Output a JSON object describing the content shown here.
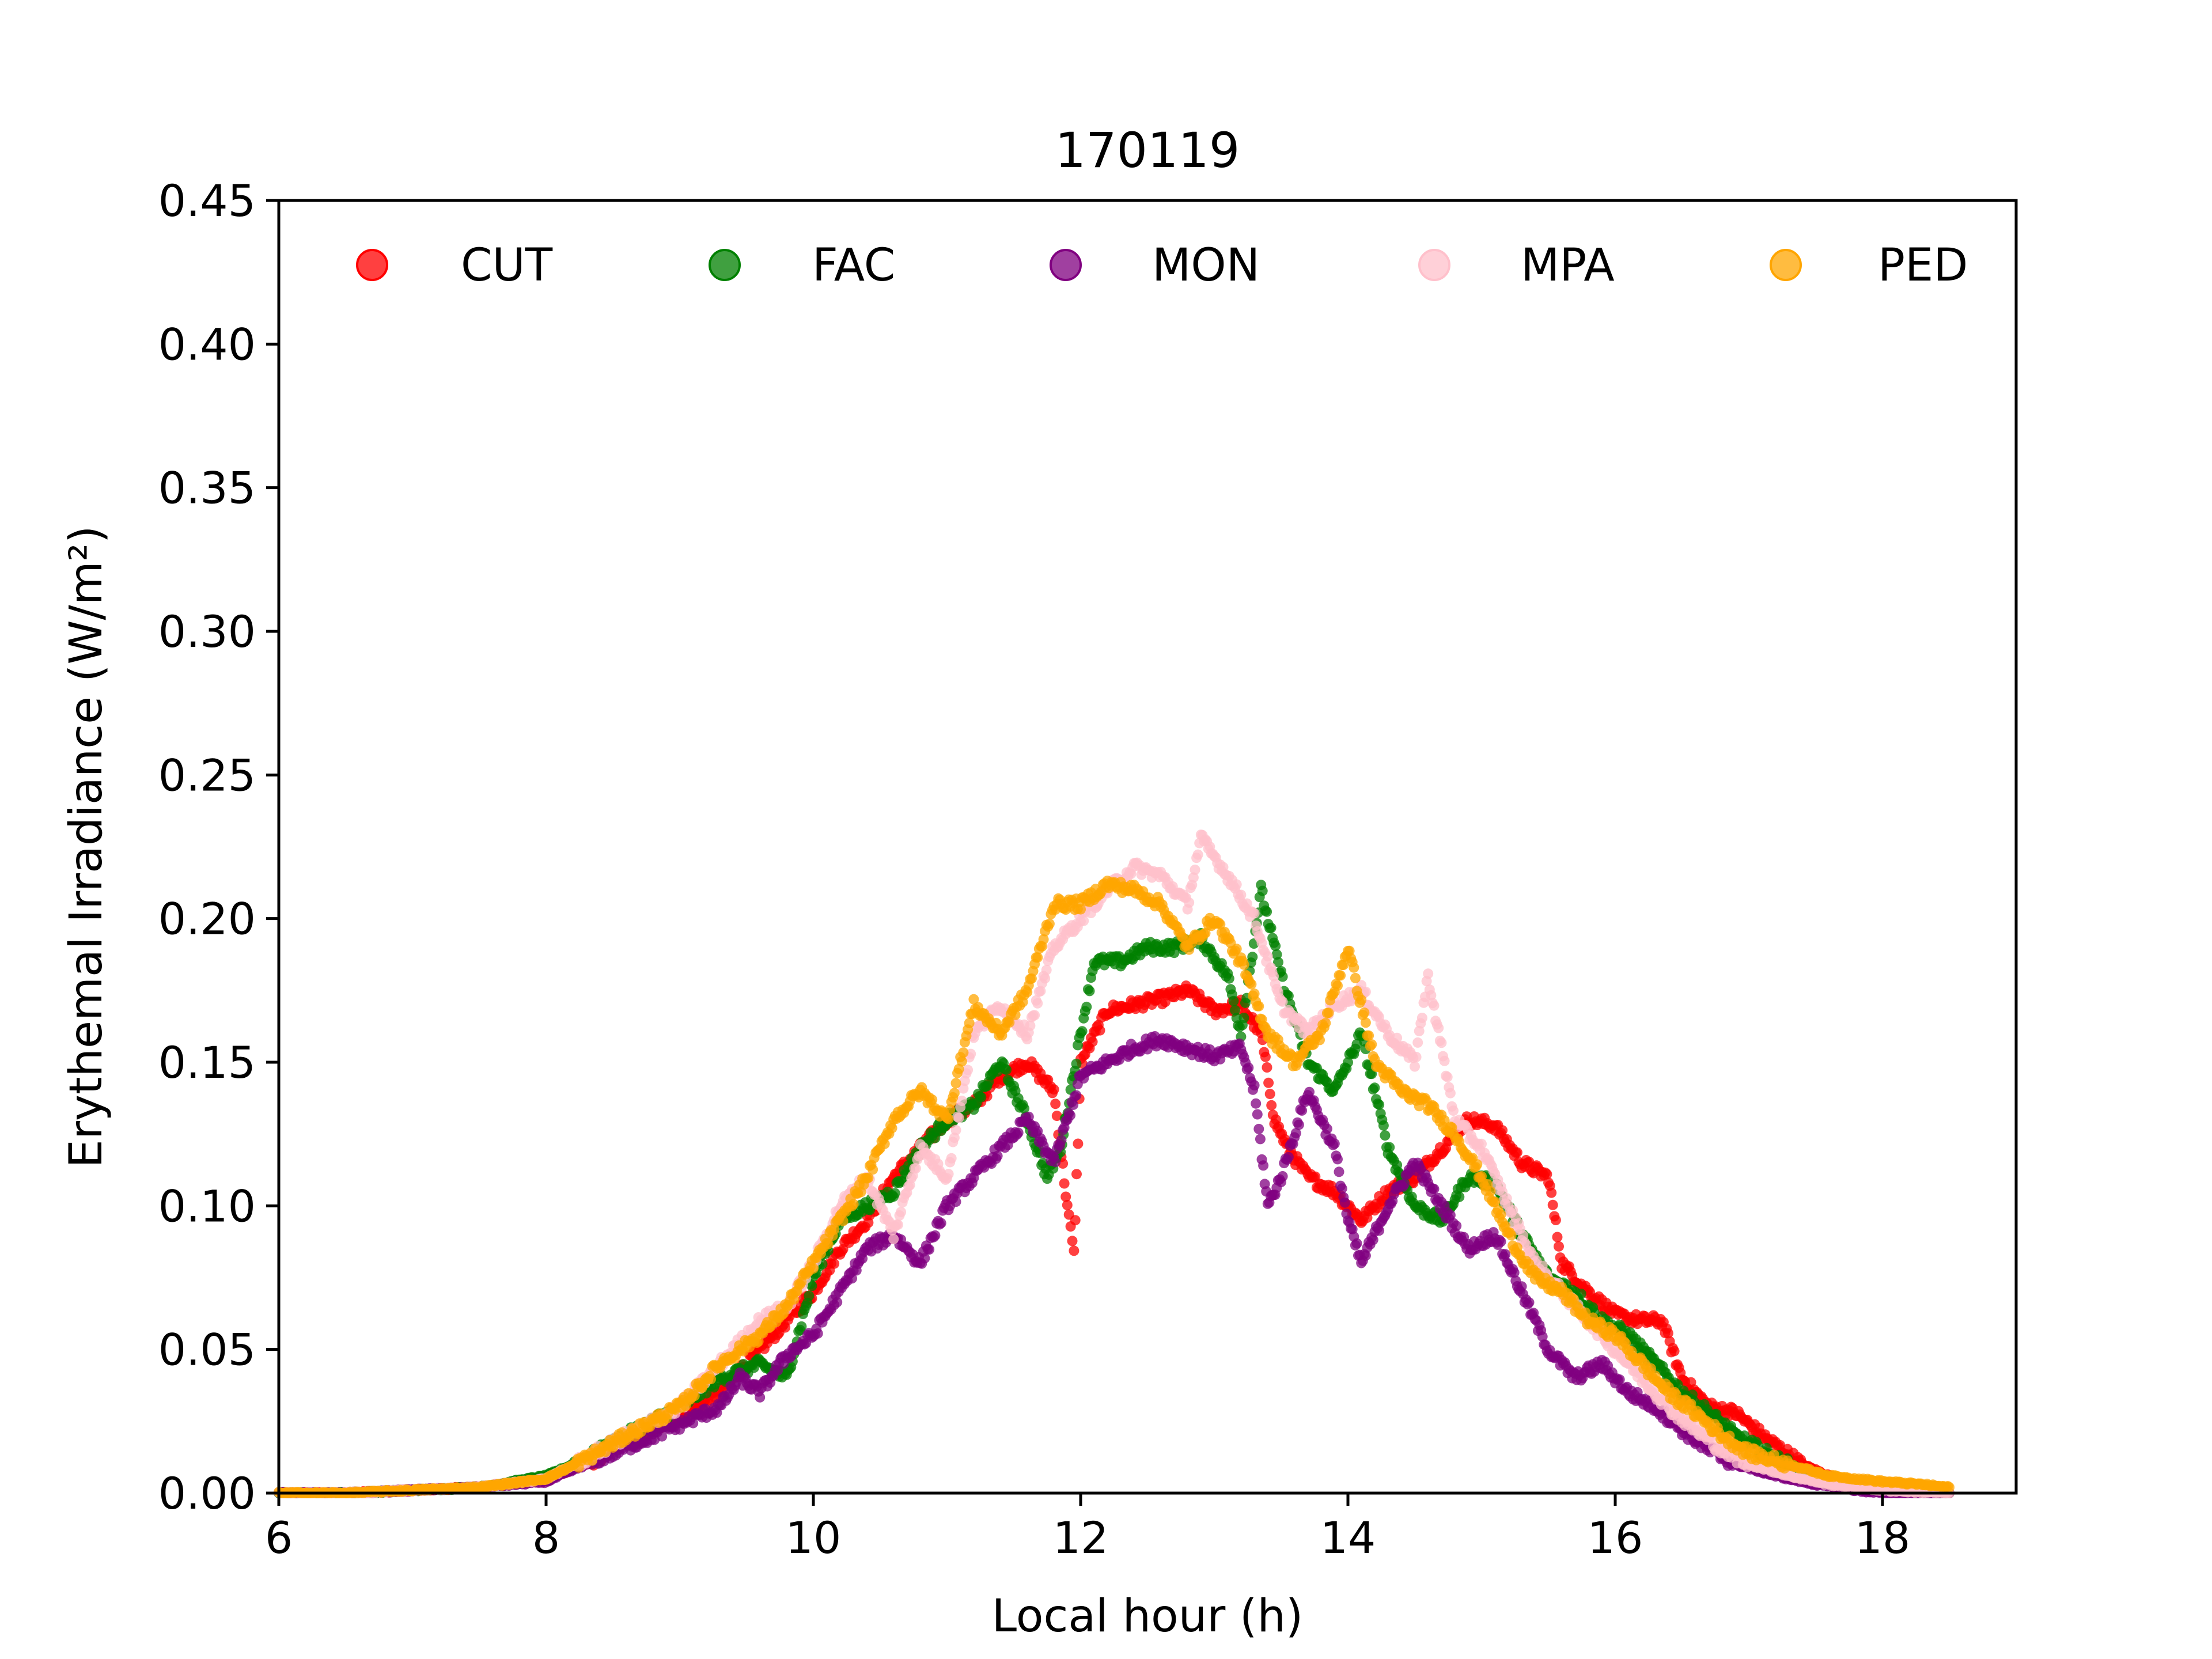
{
  "chart_data": {
    "type": "scatter",
    "title": "170119",
    "xlabel": "Local hour (h)",
    "ylabel": "Erythemal Irradiance (W/m²)",
    "xlim": [
      6,
      19
    ],
    "ylim": [
      0,
      0.45
    ],
    "xticks": [
      "6",
      "8",
      "10",
      "12",
      "14",
      "16",
      "18"
    ],
    "xtick_values": [
      6,
      8,
      10,
      12,
      14,
      16,
      18
    ],
    "yticks": [
      "0.00",
      "0.05",
      "0.10",
      "0.15",
      "0.20",
      "0.25",
      "0.30",
      "0.35",
      "0.40",
      "0.45"
    ],
    "ytick_values": [
      0,
      0.05,
      0.1,
      0.15,
      0.2,
      0.25,
      0.3,
      0.35,
      0.4,
      0.45
    ],
    "grid": false,
    "legend_position": "top",
    "series": [
      {
        "name": "CUT",
        "color": "#ff0000",
        "points": [
          [
            6,
            0
          ],
          [
            6.5,
            0
          ],
          [
            7,
            0.001
          ],
          [
            7.5,
            0.002
          ],
          [
            8,
            0.005
          ],
          [
            8.3,
            0.01
          ],
          [
            8.6,
            0.018
          ],
          [
            9,
            0.027
          ],
          [
            9.3,
            0.035
          ],
          [
            9.6,
            0.05
          ],
          [
            9.8,
            0.06
          ],
          [
            10,
            0.07
          ],
          [
            10.2,
            0.085
          ],
          [
            10.4,
            0.095
          ],
          [
            10.6,
            0.11
          ],
          [
            10.8,
            0.12
          ],
          [
            11,
            0.13
          ],
          [
            11.2,
            0.135
          ],
          [
            11.4,
            0.145
          ],
          [
            11.6,
            0.15
          ],
          [
            11.8,
            0.14
          ],
          [
            11.9,
            0.1
          ],
          [
            11.95,
            0.083
          ],
          [
            12,
            0.15
          ],
          [
            12.2,
            0.168
          ],
          [
            12.4,
            0.17
          ],
          [
            12.6,
            0.172
          ],
          [
            12.8,
            0.175
          ],
          [
            13,
            0.168
          ],
          [
            13.2,
            0.17
          ],
          [
            13.35,
            0.16
          ],
          [
            13.45,
            0.13
          ],
          [
            13.55,
            0.12
          ],
          [
            13.7,
            0.11
          ],
          [
            13.9,
            0.105
          ],
          [
            14,
            0.1
          ],
          [
            14.1,
            0.095
          ],
          [
            14.3,
            0.105
          ],
          [
            14.5,
            0.11
          ],
          [
            14.7,
            0.12
          ],
          [
            14.9,
            0.13
          ],
          [
            15.1,
            0.128
          ],
          [
            15.3,
            0.115
          ],
          [
            15.5,
            0.11
          ],
          [
            15.6,
            0.08
          ],
          [
            15.8,
            0.07
          ],
          [
            16,
            0.062
          ],
          [
            16.2,
            0.06
          ],
          [
            16.35,
            0.06
          ],
          [
            16.5,
            0.04
          ],
          [
            16.7,
            0.03
          ],
          [
            16.9,
            0.028
          ],
          [
            17.1,
            0.02
          ],
          [
            17.4,
            0.01
          ],
          [
            17.7,
            0.004
          ],
          [
            18,
            0.001
          ],
          [
            18.5,
            0
          ]
        ]
      },
      {
        "name": "FAC",
        "color": "#008000",
        "points": [
          [
            6,
            0
          ],
          [
            6.5,
            0
          ],
          [
            7,
            0.001
          ],
          [
            7.5,
            0.002
          ],
          [
            8,
            0.006
          ],
          [
            8.3,
            0.012
          ],
          [
            8.6,
            0.02
          ],
          [
            9,
            0.03
          ],
          [
            9.3,
            0.04
          ],
          [
            9.6,
            0.045
          ],
          [
            9.8,
            0.04
          ],
          [
            10,
            0.075
          ],
          [
            10.2,
            0.095
          ],
          [
            10.4,
            0.1
          ],
          [
            10.6,
            0.105
          ],
          [
            10.8,
            0.12
          ],
          [
            11,
            0.13
          ],
          [
            11.2,
            0.135
          ],
          [
            11.4,
            0.15
          ],
          [
            11.6,
            0.13
          ],
          [
            11.75,
            0.11
          ],
          [
            11.85,
            0.12
          ],
          [
            12,
            0.16
          ],
          [
            12.1,
            0.185
          ],
          [
            12.3,
            0.185
          ],
          [
            12.5,
            0.19
          ],
          [
            12.7,
            0.19
          ],
          [
            12.9,
            0.193
          ],
          [
            13.1,
            0.18
          ],
          [
            13.2,
            0.16
          ],
          [
            13.35,
            0.21
          ],
          [
            13.5,
            0.18
          ],
          [
            13.7,
            0.15
          ],
          [
            13.9,
            0.14
          ],
          [
            14.1,
            0.16
          ],
          [
            14.3,
            0.12
          ],
          [
            14.5,
            0.1
          ],
          [
            14.7,
            0.095
          ],
          [
            14.9,
            0.11
          ],
          [
            15.1,
            0.108
          ],
          [
            15.3,
            0.09
          ],
          [
            15.5,
            0.075
          ],
          [
            15.7,
            0.07
          ],
          [
            15.9,
            0.06
          ],
          [
            16.1,
            0.055
          ],
          [
            16.3,
            0.045
          ],
          [
            16.5,
            0.035
          ],
          [
            16.7,
            0.028
          ],
          [
            16.9,
            0.02
          ],
          [
            17.2,
            0.012
          ],
          [
            17.5,
            0.006
          ],
          [
            17.8,
            0.002
          ],
          [
            18,
            0.001
          ],
          [
            18.5,
            0
          ]
        ]
      },
      {
        "name": "MON",
        "color": "#800080",
        "points": [
          [
            6,
            0
          ],
          [
            6.5,
            0
          ],
          [
            7,
            0.001
          ],
          [
            7.5,
            0.002
          ],
          [
            8,
            0.004
          ],
          [
            8.3,
            0.01
          ],
          [
            8.6,
            0.016
          ],
          [
            9,
            0.024
          ],
          [
            9.3,
            0.03
          ],
          [
            9.45,
            0.04
          ],
          [
            9.6,
            0.035
          ],
          [
            9.8,
            0.048
          ],
          [
            10,
            0.055
          ],
          [
            10.2,
            0.07
          ],
          [
            10.4,
            0.085
          ],
          [
            10.6,
            0.09
          ],
          [
            10.8,
            0.08
          ],
          [
            11,
            0.1
          ],
          [
            11.2,
            0.11
          ],
          [
            11.4,
            0.12
          ],
          [
            11.6,
            0.13
          ],
          [
            11.8,
            0.115
          ],
          [
            12,
            0.145
          ],
          [
            12.2,
            0.15
          ],
          [
            12.4,
            0.155
          ],
          [
            12.6,
            0.158
          ],
          [
            12.8,
            0.155
          ],
          [
            13,
            0.152
          ],
          [
            13.2,
            0.155
          ],
          [
            13.3,
            0.14
          ],
          [
            13.4,
            0.1
          ],
          [
            13.5,
            0.11
          ],
          [
            13.7,
            0.14
          ],
          [
            13.9,
            0.12
          ],
          [
            14,
            0.095
          ],
          [
            14.1,
            0.08
          ],
          [
            14.3,
            0.1
          ],
          [
            14.5,
            0.115
          ],
          [
            14.7,
            0.1
          ],
          [
            14.9,
            0.085
          ],
          [
            15.1,
            0.09
          ],
          [
            15.3,
            0.07
          ],
          [
            15.5,
            0.05
          ],
          [
            15.7,
            0.04
          ],
          [
            15.9,
            0.045
          ],
          [
            16.1,
            0.035
          ],
          [
            16.3,
            0.03
          ],
          [
            16.5,
            0.022
          ],
          [
            16.7,
            0.015
          ],
          [
            16.9,
            0.01
          ],
          [
            17.2,
            0.006
          ],
          [
            17.5,
            0.003
          ],
          [
            17.8,
            0.001
          ],
          [
            18,
            0
          ],
          [
            18.5,
            0
          ]
        ]
      },
      {
        "name": "MPA",
        "color": "#ffc0cb",
        "points": [
          [
            6,
            0
          ],
          [
            6.5,
            0
          ],
          [
            7,
            0.001
          ],
          [
            7.5,
            0.002
          ],
          [
            8,
            0.005
          ],
          [
            8.3,
            0.012
          ],
          [
            8.6,
            0.02
          ],
          [
            9,
            0.03
          ],
          [
            9.3,
            0.045
          ],
          [
            9.6,
            0.06
          ],
          [
            9.8,
            0.065
          ],
          [
            10,
            0.08
          ],
          [
            10.2,
            0.1
          ],
          [
            10.4,
            0.11
          ],
          [
            10.6,
            0.09
          ],
          [
            10.8,
            0.12
          ],
          [
            11,
            0.11
          ],
          [
            11.2,
            0.16
          ],
          [
            11.4,
            0.17
          ],
          [
            11.6,
            0.16
          ],
          [
            11.8,
            0.19
          ],
          [
            12,
            0.2
          ],
          [
            12.2,
            0.21
          ],
          [
            12.4,
            0.218
          ],
          [
            12.6,
            0.215
          ],
          [
            12.8,
            0.205
          ],
          [
            12.9,
            0.228
          ],
          [
            13.1,
            0.215
          ],
          [
            13.3,
            0.2
          ],
          [
            13.5,
            0.17
          ],
          [
            13.7,
            0.16
          ],
          [
            13.9,
            0.17
          ],
          [
            14.1,
            0.175
          ],
          [
            14.3,
            0.16
          ],
          [
            14.5,
            0.15
          ],
          [
            14.6,
            0.18
          ],
          [
            14.8,
            0.13
          ],
          [
            15,
            0.12
          ],
          [
            15.2,
            0.1
          ],
          [
            15.4,
            0.08
          ],
          [
            15.6,
            0.07
          ],
          [
            15.8,
            0.06
          ],
          [
            16,
            0.05
          ],
          [
            16.2,
            0.04
          ],
          [
            16.4,
            0.03
          ],
          [
            16.6,
            0.022
          ],
          [
            16.8,
            0.015
          ],
          [
            17,
            0.01
          ],
          [
            17.3,
            0.006
          ],
          [
            17.6,
            0.003
          ],
          [
            18,
            0.001
          ],
          [
            18.5,
            0
          ]
        ]
      },
      {
        "name": "PED",
        "color": "#ffa500",
        "points": [
          [
            6,
            0
          ],
          [
            6.5,
            0
          ],
          [
            7,
            0.001
          ],
          [
            7.5,
            0.002
          ],
          [
            8,
            0.005
          ],
          [
            8.3,
            0.012
          ],
          [
            8.6,
            0.02
          ],
          [
            9,
            0.03
          ],
          [
            9.3,
            0.045
          ],
          [
            9.6,
            0.055
          ],
          [
            9.8,
            0.065
          ],
          [
            10,
            0.08
          ],
          [
            10.2,
            0.095
          ],
          [
            10.4,
            0.11
          ],
          [
            10.6,
            0.13
          ],
          [
            10.8,
            0.14
          ],
          [
            11,
            0.13
          ],
          [
            11.2,
            0.17
          ],
          [
            11.4,
            0.16
          ],
          [
            11.6,
            0.175
          ],
          [
            11.8,
            0.205
          ],
          [
            12,
            0.205
          ],
          [
            12.2,
            0.212
          ],
          [
            12.4,
            0.21
          ],
          [
            12.6,
            0.205
          ],
          [
            12.8,
            0.19
          ],
          [
            13,
            0.2
          ],
          [
            13.2,
            0.185
          ],
          [
            13.4,
            0.16
          ],
          [
            13.6,
            0.15
          ],
          [
            13.8,
            0.16
          ],
          [
            14,
            0.19
          ],
          [
            14.2,
            0.15
          ],
          [
            14.4,
            0.14
          ],
          [
            14.6,
            0.135
          ],
          [
            14.8,
            0.125
          ],
          [
            15,
            0.11
          ],
          [
            15.2,
            0.09
          ],
          [
            15.4,
            0.075
          ],
          [
            15.6,
            0.07
          ],
          [
            15.8,
            0.06
          ],
          [
            16,
            0.055
          ],
          [
            16.2,
            0.045
          ],
          [
            16.4,
            0.035
          ],
          [
            16.6,
            0.028
          ],
          [
            16.8,
            0.02
          ],
          [
            17,
            0.014
          ],
          [
            17.3,
            0.01
          ],
          [
            17.6,
            0.006
          ],
          [
            18,
            0.004
          ],
          [
            18.3,
            0.003
          ],
          [
            18.5,
            0.002
          ]
        ]
      }
    ]
  }
}
